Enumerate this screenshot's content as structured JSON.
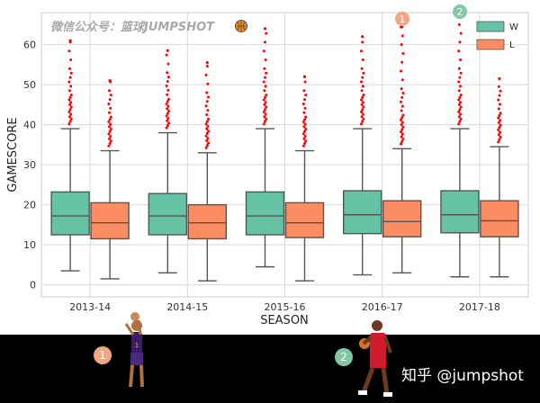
{
  "watermark": "微信公众号：篮球JUMPSHOT",
  "credit": "知乎 @jumpshot",
  "markers": [
    "1",
    "2"
  ],
  "colors": {
    "W": "#66c2a5",
    "L": "#fc8d62",
    "outlier": "#ff0000",
    "marker1": "#f4a582",
    "marker2": "#7fc9a5"
  },
  "chart_data": {
    "type": "box",
    "xlabel": "SEASON",
    "ylabel": "GAMESCORE",
    "categories": [
      "2013-14",
      "2014-15",
      "2015-16",
      "2016-17",
      "2017-18"
    ],
    "ylim": [
      -3,
      68
    ],
    "yticks": [
      0,
      10,
      20,
      30,
      40,
      50,
      60
    ],
    "grid": true,
    "legend_position": "top-right",
    "series": [
      {
        "name": "W",
        "boxes": [
          {
            "whisker_low": 3.5,
            "q1": 12.5,
            "median": 17.2,
            "q3": 23.2,
            "whisker_high": 39.0,
            "outlier_max": 61.0
          },
          {
            "whisker_low": 3.0,
            "q1": 12.5,
            "median": 17.2,
            "q3": 22.8,
            "whisker_high": 38.0,
            "outlier_max": 58.5
          },
          {
            "whisker_low": 4.5,
            "q1": 12.5,
            "median": 17.2,
            "q3": 23.2,
            "whisker_high": 39.0,
            "outlier_max": 64.0
          },
          {
            "whisker_low": 2.5,
            "q1": 12.8,
            "median": 17.5,
            "q3": 23.5,
            "whisker_high": 39.0,
            "outlier_max": 62.0
          },
          {
            "whisker_low": 2.0,
            "q1": 13.0,
            "median": 17.5,
            "q3": 23.5,
            "whisker_high": 39.0,
            "outlier_max": 67.0
          }
        ]
      },
      {
        "name": "L",
        "boxes": [
          {
            "whisker_low": 1.5,
            "q1": 11.5,
            "median": 15.5,
            "q3": 20.5,
            "whisker_high": 33.5,
            "outlier_max": 51.0
          },
          {
            "whisker_low": 1.0,
            "q1": 11.5,
            "median": 15.5,
            "q3": 20.0,
            "whisker_high": 33.0,
            "outlier_max": 55.5
          },
          {
            "whisker_low": 1.0,
            "q1": 11.8,
            "median": 15.5,
            "q3": 20.5,
            "whisker_high": 33.5,
            "outlier_max": 52.0
          },
          {
            "whisker_low": 3.0,
            "q1": 12.0,
            "median": 15.8,
            "q3": 21.0,
            "whisker_high": 34.0,
            "outlier_max": 64.5
          },
          {
            "whisker_low": 2.0,
            "q1": 12.0,
            "median": 16.0,
            "q3": 21.0,
            "whisker_high": 34.5,
            "outlier_max": 51.5
          }
        ]
      }
    ]
  }
}
